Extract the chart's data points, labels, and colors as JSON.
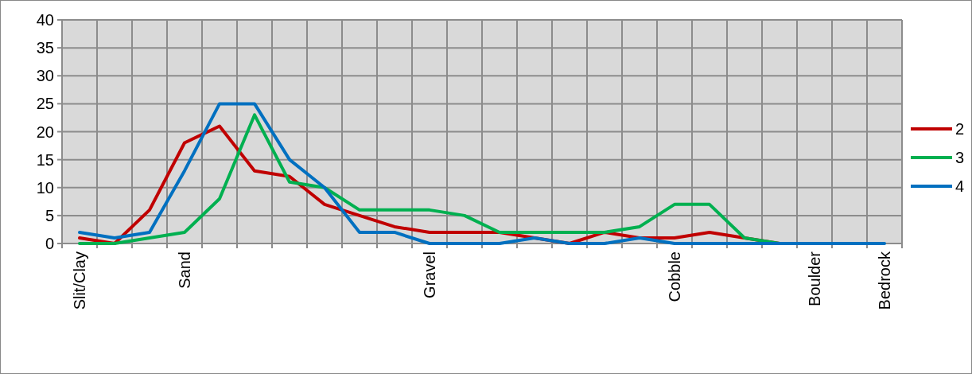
{
  "chart_data": {
    "type": "line",
    "categories": [
      "Slit/Clay",
      null,
      null,
      "Sand",
      null,
      null,
      null,
      null,
      null,
      null,
      "Gravel",
      null,
      null,
      null,
      null,
      null,
      null,
      "Cobble",
      null,
      null,
      null,
      "Boulder",
      null,
      "Bedrock"
    ],
    "series": [
      {
        "name": "2",
        "color": "#c00000",
        "values": [
          1,
          0,
          6,
          18,
          21,
          13,
          12,
          7,
          5,
          3,
          2,
          2,
          2,
          1,
          0,
          2,
          1,
          1,
          2,
          1,
          0,
          null,
          null,
          null
        ]
      },
      {
        "name": "3",
        "color": "#00b050",
        "values": [
          0,
          0,
          1,
          2,
          8,
          23,
          11,
          10,
          6,
          6,
          6,
          5,
          2,
          2,
          2,
          2,
          3,
          7,
          7,
          1,
          0,
          0,
          null,
          null
        ]
      },
      {
        "name": "4",
        "color": "#0070c0",
        "values": [
          2,
          1,
          2,
          13,
          25,
          25,
          15,
          10,
          2,
          2,
          0,
          0,
          0,
          1,
          0,
          0,
          1,
          0,
          0,
          0,
          0,
          0,
          0,
          0
        ]
      }
    ],
    "ylim": [
      0,
      40
    ],
    "yticks": [
      0,
      5,
      10,
      15,
      20,
      25,
      30,
      35,
      40
    ],
    "grid": true,
    "legend": "right",
    "marker": "none",
    "line_style": "solid"
  }
}
